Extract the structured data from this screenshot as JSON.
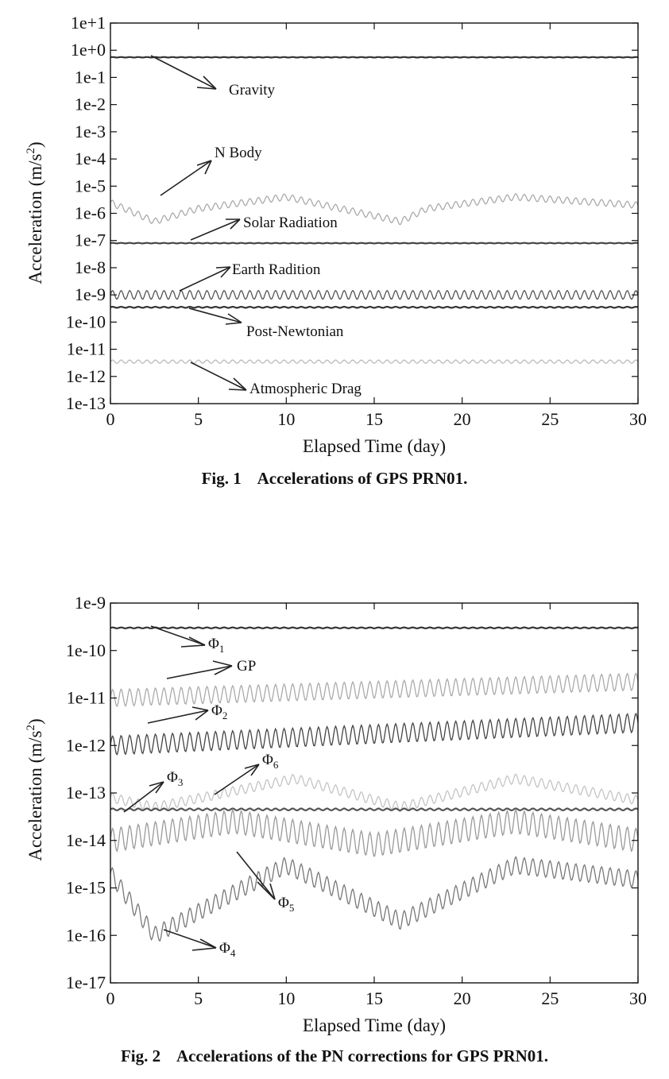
{
  "chart_data": [
    {
      "type": "line",
      "y_scale": "log",
      "xlabel": "Elapsed Time (day)",
      "ylabel": "Acceleration (m/s²)",
      "xlim": [
        0,
        30
      ],
      "ylim": [
        1e-13,
        10
      ],
      "x_ticks": [
        "0",
        "5",
        "10",
        "15",
        "20",
        "25",
        "30"
      ],
      "y_ticks": [
        "1e+1",
        "1e+0",
        "1e-1",
        "1e-2",
        "1e-3",
        "1e-4",
        "1e-5",
        "1e-6",
        "1e-7",
        "1e-8",
        "1e-9",
        "1e-10",
        "1e-11",
        "1e-12",
        "1e-13"
      ],
      "caption": "Fig. 1    Accelerations of GPS PRN01.",
      "series": [
        {
          "name": "Gravity",
          "color": "#333333",
          "x": [
            0,
            30
          ],
          "y": [
            0.55,
            0.55
          ]
        },
        {
          "name": "N Body",
          "color": "#aaaaaa",
          "x": [
            0,
            2.5,
            5,
            10,
            16.5,
            18,
            23,
            30
          ],
          "y": [
            2.5e-06,
            5e-07,
            1.5e-06,
            4e-06,
            5e-07,
            1.5e-06,
            4e-06,
            2e-06
          ]
        },
        {
          "name": "Solar Radiation",
          "color": "#444444",
          "x": [
            0,
            30
          ],
          "y": [
            8e-08,
            8e-08
          ]
        },
        {
          "name": "Earth Radition",
          "color": "#555555",
          "x": [
            0,
            30
          ],
          "y": [
            1e-09,
            1e-09
          ]
        },
        {
          "name": "Post-Newtonian",
          "color": "#333333",
          "x": [
            0,
            30
          ],
          "y": [
            3.5e-10,
            3.5e-10
          ]
        },
        {
          "name": "Atmospheric Drag",
          "color": "#bbbbbb",
          "x": [
            0,
            30
          ],
          "y": [
            3.5e-12,
            3.5e-12
          ]
        }
      ]
    },
    {
      "type": "line",
      "y_scale": "log",
      "xlabel": "Elapsed Time (day)",
      "ylabel": "Acceleration (m/s²)",
      "xlim": [
        0,
        30
      ],
      "ylim": [
        1e-17,
        1e-09
      ],
      "x_ticks": [
        "0",
        "5",
        "10",
        "15",
        "20",
        "25",
        "30"
      ],
      "y_ticks": [
        "1e-9",
        "1e-10",
        "1e-11",
        "1e-12",
        "1e-13",
        "1e-14",
        "1e-15",
        "1e-16",
        "1e-17"
      ],
      "caption": "Fig. 2    Accelerations of the PN corrections for GPS PRN01.",
      "series": [
        {
          "name": "Φ1",
          "color": "#333333",
          "x": [
            0,
            30
          ],
          "y": [
            3e-10,
            3e-10
          ]
        },
        {
          "name": "GP",
          "color": "#aaaaaa",
          "x": [
            0,
            30
          ],
          "y": [
            1e-11,
            2.2e-11
          ]
        },
        {
          "name": "Φ2",
          "color": "#444444",
          "x": [
            0,
            30
          ],
          "y": [
            1e-12,
            3e-12
          ]
        },
        {
          "name": "Φ6",
          "color": "#c4c4c4",
          "x": [
            0,
            2.5,
            10.5,
            16.5,
            23,
            30
          ],
          "y": [
            8e-14,
            5e-14,
            2e-13,
            5e-14,
            2e-13,
            7e-14
          ]
        },
        {
          "name": "Φ3",
          "color": "#555555",
          "x": [
            0,
            30
          ],
          "y": [
            4.5e-14,
            4.5e-14
          ]
        },
        {
          "name": "Φ5",
          "color": "#999999",
          "x": [
            0,
            7,
            15,
            23,
            30
          ],
          "y": [
            1e-14,
            2.5e-14,
            8e-15,
            2.5e-14,
            1e-14
          ]
        },
        {
          "name": "Φ4",
          "color": "#777777",
          "x": [
            0,
            2.5,
            10,
            16.5,
            23,
            30
          ],
          "y": [
            2e-15,
            1e-16,
            3e-15,
            2e-16,
            3e-15,
            1.5e-15
          ]
        }
      ]
    }
  ]
}
